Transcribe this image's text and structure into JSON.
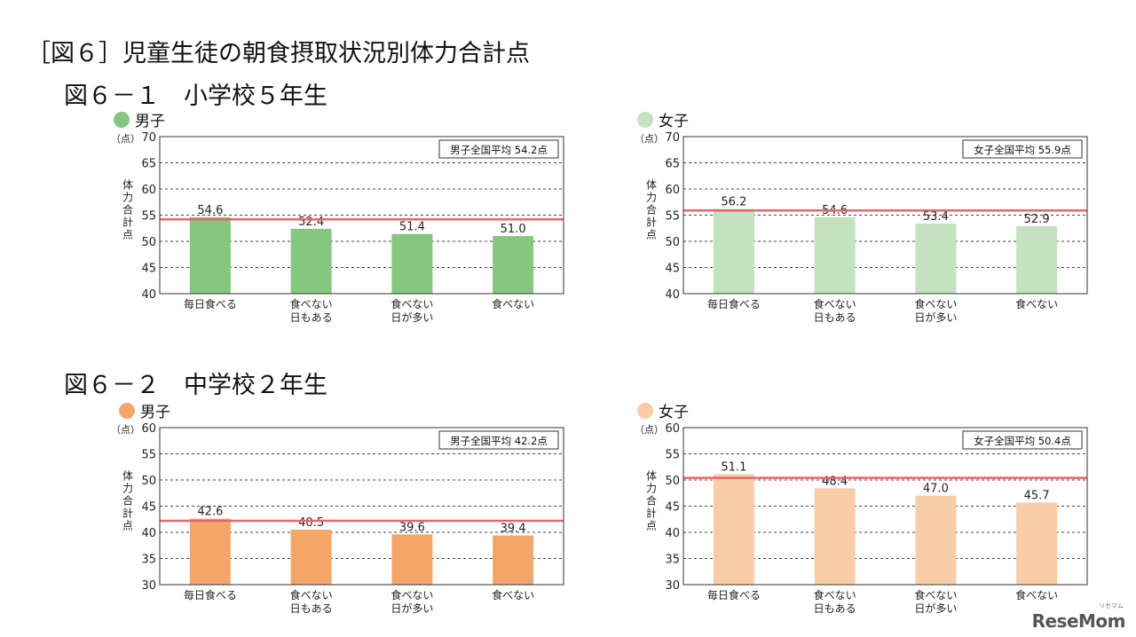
{
  "page": {
    "title": "［図６］児童生徒の朝食摂取状況別体力合計点",
    "watermark": "ReseMom",
    "watermark_sub": "リセマム"
  },
  "sections": [
    {
      "title": "図６－１　小学校５年生"
    },
    {
      "title": "図６－２　中学校２年生"
    }
  ],
  "colors": {
    "elem_boy": "#85c77f",
    "elem_girl": "#c2e2c0",
    "jh_boy": "#f4a66a",
    "jh_girl": "#f9cda8",
    "avg_line": "#e8656d",
    "grid": "#333333"
  },
  "chart_data": [
    {
      "type": "bar",
      "legend": "男子",
      "categories": [
        "毎日食べる",
        "食べない|日もある",
        "食べない|日が多い",
        "食べない"
      ],
      "values": [
        54.6,
        52.4,
        51.4,
        51.0
      ],
      "value_labels": [
        "54.6",
        "52.4",
        "51.4",
        "51.0"
      ],
      "ylim": [
        40,
        70
      ],
      "yticks": [
        "40",
        "45",
        "50",
        "55",
        "60",
        "65",
        "70"
      ],
      "unit_label": "（点）",
      "ylabel": "体力合計点",
      "average": 54.2,
      "average_label": "男子全国平均 54.2点",
      "color_key": "elem_boy",
      "grid": true
    },
    {
      "type": "bar",
      "legend": "女子",
      "categories": [
        "毎日食べる",
        "食べない|日もある",
        "食べない|日が多い",
        "食べない"
      ],
      "values": [
        56.2,
        54.6,
        53.4,
        52.9
      ],
      "value_labels": [
        "56.2",
        "54.6",
        "53.4",
        "52.9"
      ],
      "ylim": [
        40,
        70
      ],
      "yticks": [
        "40",
        "45",
        "50",
        "55",
        "60",
        "65",
        "70"
      ],
      "unit_label": "（点）",
      "ylabel": "体力合計点",
      "average": 55.9,
      "average_label": "女子全国平均 55.9点",
      "color_key": "elem_girl",
      "grid": true
    },
    {
      "type": "bar",
      "legend": "男子",
      "categories": [
        "毎日食べる",
        "食べない|日もある",
        "食べない|日が多い",
        "食べない"
      ],
      "values": [
        42.6,
        40.5,
        39.6,
        39.4
      ],
      "value_labels": [
        "42.6",
        "40.5",
        "39.6",
        "39.4"
      ],
      "ylim": [
        30,
        60
      ],
      "yticks": [
        "30",
        "35",
        "40",
        "45",
        "50",
        "55",
        "60"
      ],
      "unit_label": "（点）",
      "ylabel": "体力合計点",
      "average": 42.2,
      "average_label": "男子全国平均 42.2点",
      "color_key": "jh_boy",
      "grid": true
    },
    {
      "type": "bar",
      "legend": "女子",
      "categories": [
        "毎日食べる",
        "食べない|日もある",
        "食べない|日が多い",
        "食べない"
      ],
      "values": [
        51.1,
        48.4,
        47.0,
        45.7
      ],
      "value_labels": [
        "51.1",
        "48.4",
        "47.0",
        "45.7"
      ],
      "ylim": [
        30,
        60
      ],
      "yticks": [
        "30",
        "35",
        "40",
        "45",
        "50",
        "55",
        "60"
      ],
      "unit_label": "（点）",
      "ylabel": "体力合計点",
      "average": 50.4,
      "average_label": "女子全国平均 50.4点",
      "color_key": "jh_girl",
      "grid": true
    }
  ]
}
